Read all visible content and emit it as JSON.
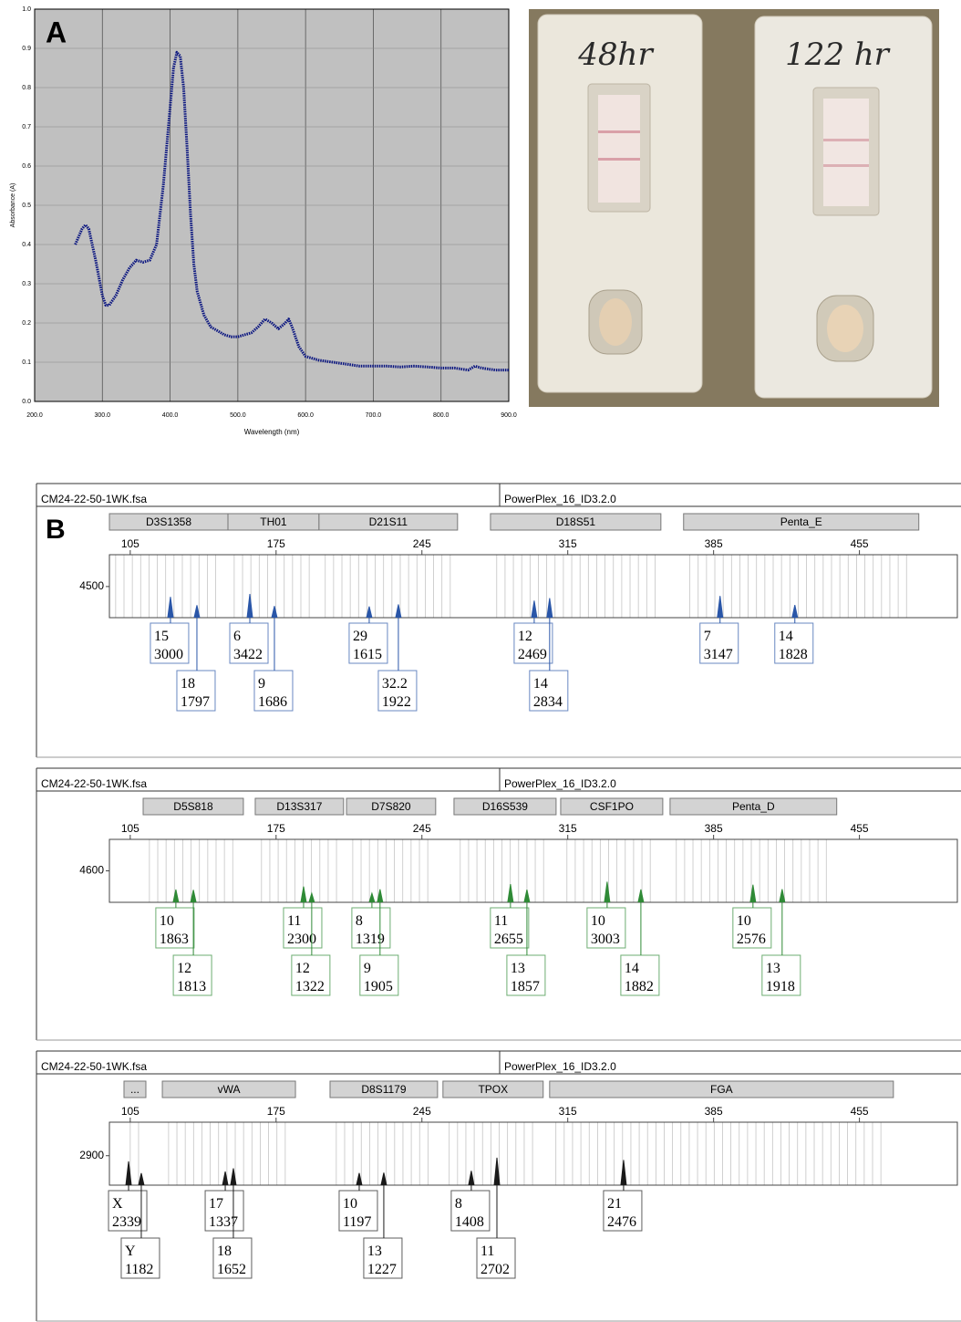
{
  "photo": {
    "labels": [
      "48hr",
      "122 hr"
    ]
  },
  "chart_data": [
    {
      "type": "line",
      "label": "A",
      "xlabel": "Wavelength (nm)",
      "ylabel": "Absorbance (A)",
      "color": "#0a1580",
      "grid": true,
      "xlim": [
        200,
        900
      ],
      "ylim": [
        0,
        1
      ],
      "xticks": [
        {
          "value": 200,
          "label": "200.0"
        },
        {
          "value": 300,
          "label": "300.0"
        },
        {
          "value": 400,
          "label": "400.0"
        },
        {
          "value": 500,
          "label": "500.0"
        },
        {
          "value": 600,
          "label": "600.0"
        },
        {
          "value": 700,
          "label": "700.0"
        },
        {
          "value": 800,
          "label": "800.0"
        },
        {
          "value": 900,
          "label": "900.0"
        }
      ],
      "yticks": [
        {
          "value": 0,
          "label": "0.0"
        },
        0.1,
        0.2,
        0.3,
        0.4,
        0.5,
        0.6,
        0.7,
        0.8,
        0.9,
        {
          "value": 1,
          "label": "1.0"
        }
      ],
      "x": [
        260,
        270,
        275,
        280,
        290,
        300,
        305,
        310,
        320,
        330,
        340,
        350,
        360,
        370,
        380,
        390,
        400,
        405,
        410,
        415,
        420,
        425,
        430,
        435,
        440,
        450,
        460,
        470,
        480,
        490,
        500,
        510,
        520,
        530,
        540,
        550,
        560,
        570,
        575,
        580,
        590,
        600,
        620,
        640,
        660,
        680,
        700,
        720,
        740,
        760,
        780,
        800,
        820,
        840,
        850,
        860,
        880,
        900
      ],
      "values": [
        0.4,
        0.44,
        0.45,
        0.44,
        0.36,
        0.27,
        0.245,
        0.245,
        0.27,
        0.31,
        0.34,
        0.36,
        0.355,
        0.36,
        0.4,
        0.55,
        0.75,
        0.85,
        0.89,
        0.88,
        0.8,
        0.65,
        0.48,
        0.35,
        0.28,
        0.22,
        0.19,
        0.18,
        0.17,
        0.165,
        0.165,
        0.17,
        0.175,
        0.19,
        0.21,
        0.2,
        0.185,
        0.2,
        0.21,
        0.19,
        0.14,
        0.115,
        0.105,
        0.1,
        0.095,
        0.09,
        0.09,
        0.09,
        0.088,
        0.09,
        0.088,
        0.085,
        0.085,
        0.08,
        0.09,
        0.085,
        0.08,
        0.08
      ]
    },
    {
      "type": "electropherogram",
      "label": "B",
      "file": "CM24-22-50-1WK.fsa",
      "kit": "PowerPlex_16_ID3.2.0",
      "color": "#2a56a8",
      "xlim": [
        95,
        502
      ],
      "ylim": [
        0,
        9100
      ],
      "xticks": [
        105,
        175,
        245,
        315,
        385,
        455
      ],
      "yticks": [
        4500
      ],
      "loci": [
        {
          "name": "D3S1358",
          "range": [
            95,
            151.9
          ]
        },
        {
          "name": "TH01",
          "range": [
            151.9,
            195.6
          ]
        },
        {
          "name": "D21S11",
          "range": [
            195.6,
            262.1
          ]
        },
        {
          "name": "D18S51",
          "range": [
            277.9,
            359.7
          ]
        },
        {
          "name": "Penta_E",
          "range": [
            370.6,
            483.5
          ]
        }
      ],
      "peaks": [
        {
          "allele": "15",
          "size": 124.3,
          "height": 3000
        },
        {
          "allele": "18",
          "size": 137.0,
          "height": 1797
        },
        {
          "allele": "6",
          "size": 162.4,
          "height": 3422
        },
        {
          "allele": "9",
          "size": 174.2,
          "height": 1686
        },
        {
          "allele": "29",
          "size": 219.7,
          "height": 1615
        },
        {
          "allele": "32.2",
          "size": 233.7,
          "height": 1922
        },
        {
          "allele": "12",
          "size": 298.9,
          "height": 2469
        },
        {
          "allele": "14",
          "size": 306.3,
          "height": 2834
        },
        {
          "allele": "7",
          "size": 388.1,
          "height": 3147
        },
        {
          "allele": "14",
          "size": 424.0,
          "height": 1828
        }
      ]
    },
    {
      "type": "electropherogram",
      "file": "CM24-22-50-1WK.fsa",
      "kit": "PowerPlex_16_ID3.2.0",
      "color": "#2f8a36",
      "xlim": [
        95,
        502
      ],
      "ylim": [
        0,
        9200
      ],
      "xticks": [
        105,
        175,
        245,
        315,
        385,
        455
      ],
      "yticks": [
        4600
      ],
      "loci": [
        {
          "name": "D5S818",
          "range": [
            111.2,
            159.3
          ]
        },
        {
          "name": "D13S317",
          "range": [
            165,
            207.4
          ]
        },
        {
          "name": "D7S820",
          "range": [
            208.8,
            251.6
          ]
        },
        {
          "name": "D16S539",
          "range": [
            260.4,
            309.4
          ]
        },
        {
          "name": "CSF1PO",
          "range": [
            311.6,
            360.6
          ]
        },
        {
          "name": "Penta_D",
          "range": [
            364.1,
            444.1
          ]
        }
      ],
      "peaks": [
        {
          "allele": "10",
          "size": 126.9,
          "height": 1863
        },
        {
          "allele": "12",
          "size": 135.3,
          "height": 1813
        },
        {
          "allele": "11",
          "size": 188.2,
          "height": 2300
        },
        {
          "allele": "12",
          "size": 192.1,
          "height": 1322
        },
        {
          "allele": "8",
          "size": 221.0,
          "height": 1319
        },
        {
          "allele": "9",
          "size": 224.9,
          "height": 1905
        },
        {
          "allele": "11",
          "size": 287.5,
          "height": 2655
        },
        {
          "allele": "13",
          "size": 295.4,
          "height": 1857
        },
        {
          "allele": "10",
          "size": 333.9,
          "height": 3003
        },
        {
          "allele": "14",
          "size": 350.1,
          "height": 1882
        },
        {
          "allele": "10",
          "size": 403.9,
          "height": 2576
        },
        {
          "allele": "13",
          "size": 417.9,
          "height": 1918
        }
      ]
    },
    {
      "type": "electropherogram",
      "file": "CM24-22-50-1WK.fsa",
      "kit": "PowerPlex_16_ID3.2.0",
      "color": "#1a1a1a",
      "xlim": [
        95,
        502
      ],
      "ylim": [
        0,
        6200
      ],
      "xticks": [
        105,
        175,
        245,
        315,
        385,
        455
      ],
      "yticks": [
        2900
      ],
      "loci": [
        {
          "name": "...",
          "range": [
            102,
            112.5
          ]
        },
        {
          "name": "vWA",
          "range": [
            120.4,
            184.3
          ]
        },
        {
          "name": "D8S1179",
          "range": [
            200.9,
            252.5
          ]
        },
        {
          "name": "TPOX",
          "range": [
            255.1,
            303.2
          ]
        },
        {
          "name": "FGA",
          "range": [
            306.3,
            471.3
          ]
        }
      ],
      "peaks": [
        {
          "allele": "X",
          "size": 104.2,
          "height": 2339
        },
        {
          "allele": "Y",
          "size": 110.3,
          "height": 1182
        },
        {
          "allele": "17",
          "size": 150.6,
          "height": 1337
        },
        {
          "allele": "18",
          "size": 154.5,
          "height": 1652
        },
        {
          "allele": "10",
          "size": 214.9,
          "height": 1197
        },
        {
          "allele": "13",
          "size": 226.7,
          "height": 1227
        },
        {
          "allele": "8",
          "size": 268.7,
          "height": 1408
        },
        {
          "allele": "11",
          "size": 281.0,
          "height": 2702
        },
        {
          "allele": "21",
          "size": 341.8,
          "height": 2476
        }
      ]
    }
  ]
}
